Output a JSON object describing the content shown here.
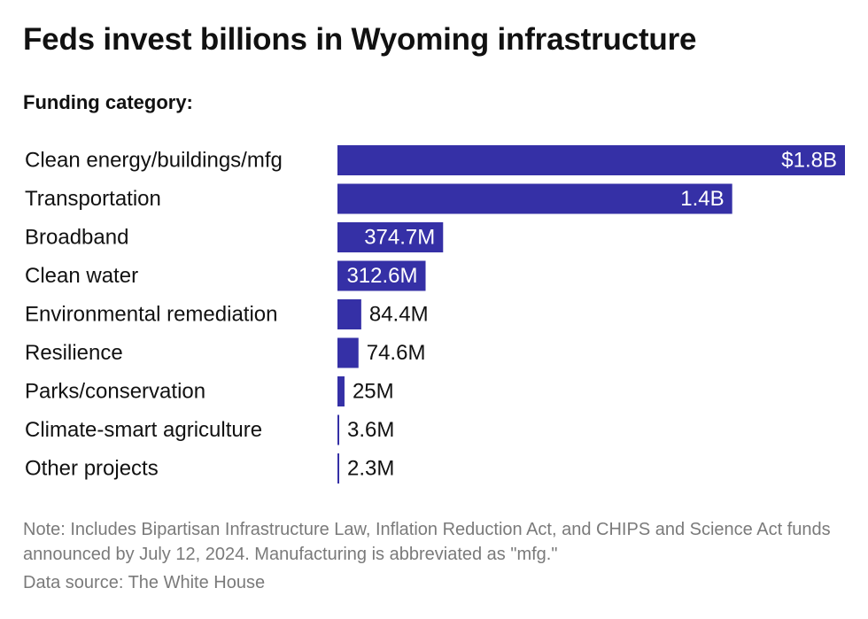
{
  "title": "Feds invest billions in Wyoming infrastructure",
  "subtitle": "Funding category:",
  "note": "Note: Includes Bipartisan Infrastructure Law, Inflation Reduction Act, and CHIPS and Science Act funds announced by July 12, 2024. Manufacturing is abbreviated as \"mfg.\"",
  "source": "Data source: The White House",
  "colors": {
    "bar": "#3530a6",
    "label_inside": "#ffffff",
    "label_outside": "#111111"
  },
  "chart_data": {
    "type": "bar",
    "orientation": "horizontal",
    "categories": [
      "Clean energy/buildings/mfg",
      "Transportation",
      "Broadband",
      "Clean water",
      "Environmental remediation",
      "Resilience",
      "Parks/conservation",
      "Climate-smart agriculture",
      "Other projects"
    ],
    "values": [
      1800,
      1400,
      374.7,
      312.6,
      84.4,
      74.6,
      25,
      3.6,
      2.3
    ],
    "value_units": "millions of dollars",
    "data_labels": [
      "$1.8B",
      "1.4B",
      "374.7M",
      "312.6M",
      "84.4M",
      "74.6M",
      "25M",
      "3.6M",
      "2.3M"
    ],
    "xlim": [
      0,
      1800
    ],
    "grid": false,
    "legend": "none"
  }
}
